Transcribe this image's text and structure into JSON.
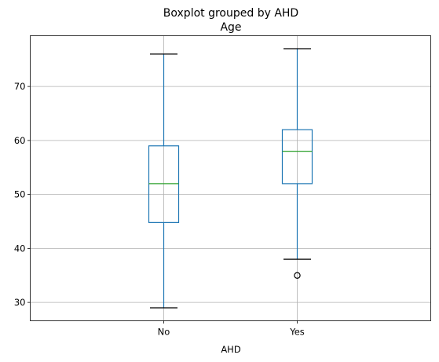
{
  "chart_data": {
    "type": "boxplot",
    "title": "Boxplot grouped by AHD",
    "subtitle": "Age",
    "xlabel": "AHD",
    "ylabel": "",
    "categories": [
      "No",
      "Yes"
    ],
    "ylim": [
      26.6,
      79.4
    ],
    "yticks": [
      30,
      40,
      50,
      60,
      70
    ],
    "grid": true,
    "colors": {
      "box": "#1f77b4",
      "median": "#2ca02c",
      "cap": "#000000",
      "grid": "#b0b0b0"
    },
    "boxes": [
      {
        "category": "No",
        "whisker_low": 29,
        "q1": 44.8,
        "median": 52,
        "q3": 59,
        "whisker_high": 76,
        "outliers": []
      },
      {
        "category": "Yes",
        "whisker_low": 38,
        "q1": 52,
        "median": 58,
        "q3": 62,
        "whisker_high": 77,
        "outliers": [
          35
        ]
      }
    ]
  }
}
